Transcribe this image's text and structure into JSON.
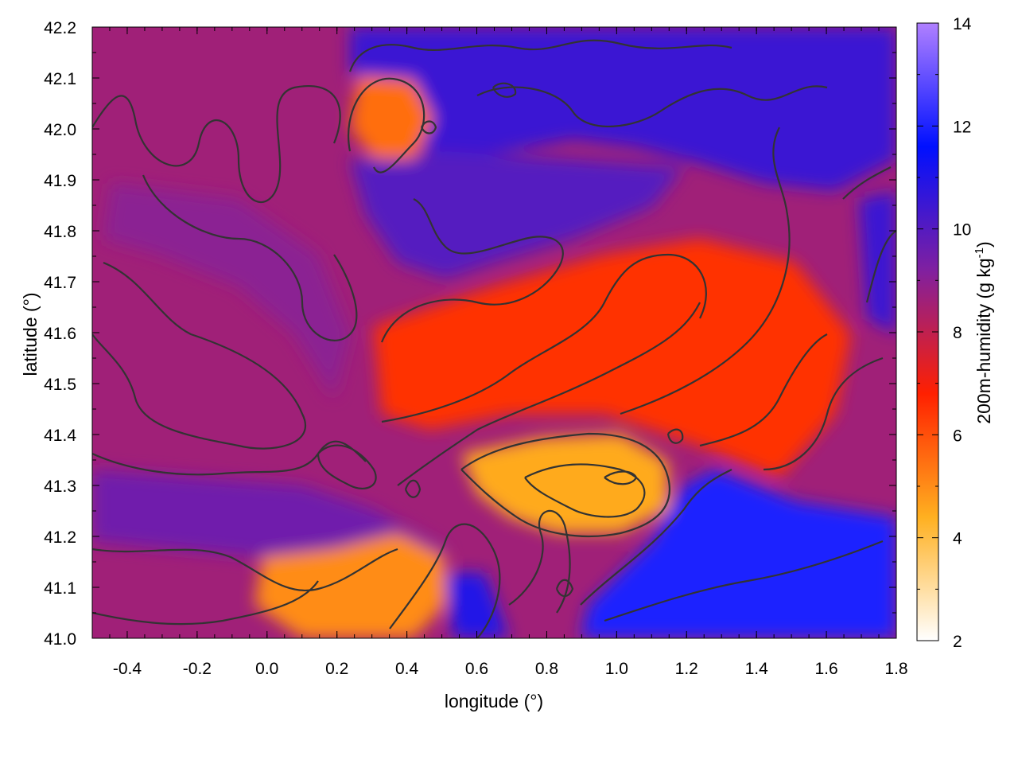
{
  "chart_data": {
    "type": "heatmap",
    "title": "",
    "xlabel": "longitude (°)",
    "ylabel": "latitude (°)",
    "xlim": [
      -0.5,
      1.8
    ],
    "ylim": [
      41.0,
      42.2
    ],
    "xticks": [
      "-0.4",
      "-0.2",
      "0.0",
      "0.2",
      "0.4",
      "0.6",
      "0.8",
      "1.0",
      "1.2",
      "1.4",
      "1.6",
      "1.8"
    ],
    "yticks": [
      "41.0",
      "41.1",
      "41.2",
      "41.3",
      "41.4",
      "41.5",
      "41.6",
      "41.7",
      "41.8",
      "41.9",
      "42.0",
      "42.1",
      "42.2"
    ],
    "colorbar": {
      "label": "200m-humidity (g kg",
      "label_superscript": "-1",
      "label_close": ")",
      "range": [
        2,
        14
      ],
      "ticks": [
        "2",
        "4",
        "6",
        "8",
        "10",
        "12",
        "14"
      ],
      "colors": [
        "#ffffff",
        "#ffb020",
        "#ff2000",
        "#8020a0",
        "#0010ff",
        "#b080ff"
      ]
    },
    "contours": true,
    "contour_color": "#333333",
    "grid": false,
    "features": [
      {
        "name": "dry-plume-north",
        "lon": 0.3,
        "lat": 41.95,
        "value": 5.5
      },
      {
        "name": "dry-band-center",
        "lon": 0.75,
        "lat": 41.6,
        "value": 6.5
      },
      {
        "name": "dry-core-south",
        "lon": 0.9,
        "lat": 41.3,
        "value": 4.5
      },
      {
        "name": "dry-tongue-southwest",
        "lon": 0.15,
        "lat": 41.05,
        "value": 5.0
      },
      {
        "name": "moist-band-north",
        "lon": 0.9,
        "lat": 42.05,
        "value": 10.5
      },
      {
        "name": "moist-band-mid",
        "lon": 0.8,
        "lat": 41.85,
        "value": 10.0
      },
      {
        "name": "moist-sea-southeast",
        "lon": 1.45,
        "lat": 41.1,
        "value": 12.0
      },
      {
        "name": "moist-band-west",
        "lon": 0.0,
        "lat": 41.22,
        "value": 9.5
      }
    ]
  }
}
